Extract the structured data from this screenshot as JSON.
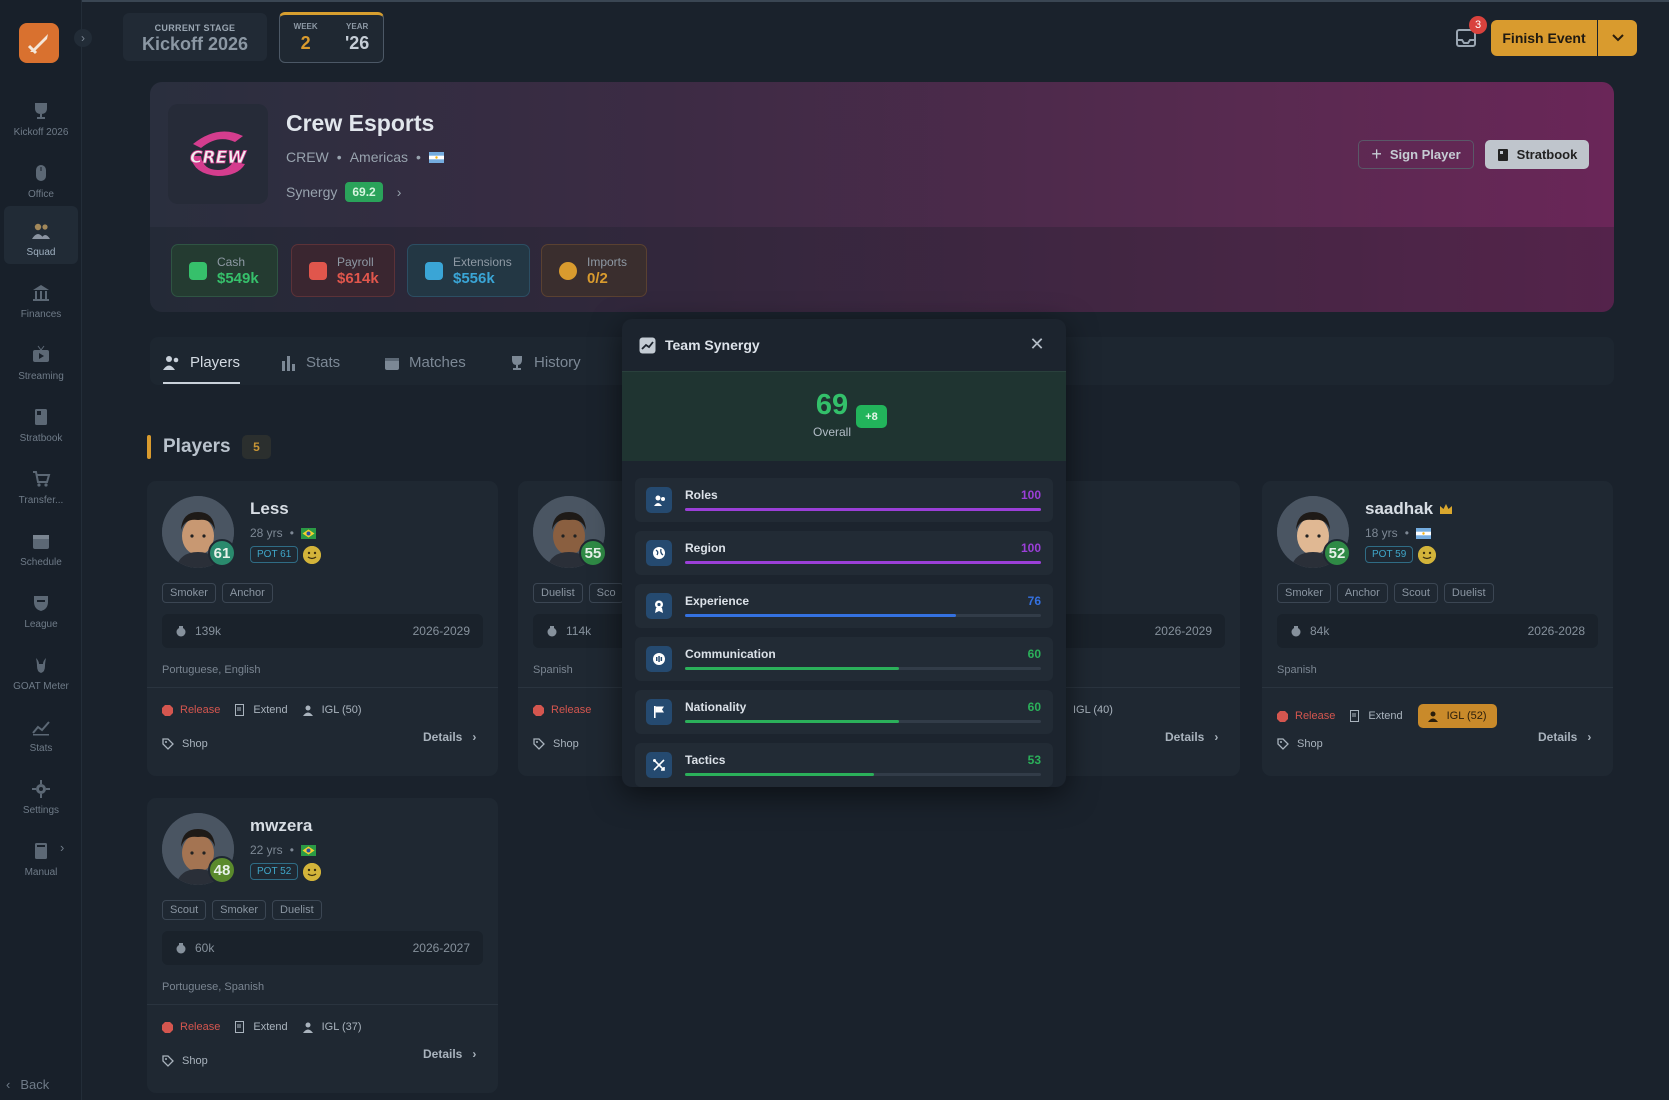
{
  "sidebar": {
    "items": [
      {
        "label": "Kickoff 2026",
        "icon": "trophy-icon"
      },
      {
        "label": "Office",
        "icon": "mouse-icon"
      },
      {
        "label": "Squad",
        "icon": "users-icon"
      },
      {
        "label": "Finances",
        "icon": "bank-icon"
      },
      {
        "label": "Streaming",
        "icon": "tv-icon"
      },
      {
        "label": "Stratbook",
        "icon": "book-icon"
      },
      {
        "label": "Transfer...",
        "icon": "cart-icon"
      },
      {
        "label": "Schedule",
        "icon": "calendar-icon"
      },
      {
        "label": "League",
        "icon": "shield-icon"
      },
      {
        "label": "GOAT Meter",
        "icon": "goat-icon"
      },
      {
        "label": "Stats",
        "icon": "chart-icon"
      },
      {
        "label": "Settings",
        "icon": "gear-icon"
      },
      {
        "label": "Manual",
        "icon": "manual-icon"
      }
    ],
    "active": "Squad",
    "back_label": "Back"
  },
  "topbar": {
    "stage_caption": "CURRENT STAGE",
    "stage_value": "Kickoff 2026",
    "week_caption": "WEEK",
    "week_value": "2",
    "year_caption": "YEAR",
    "year_value": "'26",
    "inbox_count": "3",
    "finish_label": "Finish Event"
  },
  "team": {
    "name": "Crew Esports",
    "tag": "CREW",
    "region": "Americas",
    "logo_text": "CREW",
    "synergy_label": "Synergy",
    "synergy_value": "69.2",
    "sign_label": "Sign Player",
    "stratbook_label": "Stratbook",
    "finances": [
      {
        "label": "Cash",
        "value": "$549k",
        "color": "#36c06b"
      },
      {
        "label": "Payroll",
        "value": "$614k",
        "color": "#e0564c"
      },
      {
        "label": "Extensions",
        "value": "$556k",
        "color": "#3aa5d6"
      },
      {
        "label": "Imports",
        "value": "0/2",
        "color": "#d99b2e"
      }
    ]
  },
  "tabs": [
    "Players",
    "Stats",
    "Matches",
    "History"
  ],
  "players_section": {
    "title": "Players",
    "count": "5"
  },
  "players": [
    {
      "name": "Less",
      "age": "28 yrs",
      "ovr": "61",
      "pot": "POT 61",
      "roles": [
        "Smoker",
        "Anchor"
      ],
      "salary": "139k",
      "years": "2026-2029",
      "langs": "Portuguese, English",
      "release": "Release",
      "extend": "Extend",
      "igl": "IGL (50)",
      "shop": "Shop",
      "details": "Details"
    },
    {
      "name": "",
      "age": "",
      "ovr": "55",
      "pot": "",
      "roles": [
        "Duelist",
        "Sco"
      ],
      "salary": "114k",
      "years": "",
      "langs": "Spanish",
      "release": "Release",
      "extend": "",
      "igl": "",
      "shop": "Shop",
      "details": ""
    },
    {
      "name": "",
      "age": "",
      "ovr": "",
      "pot": "",
      "roles": [],
      "salary": "",
      "years": "2026-2029",
      "langs": "",
      "release": "",
      "extend": "",
      "igl": "IGL (40)",
      "shop": "",
      "details": "Details"
    },
    {
      "name": "saadhak",
      "age": "18 yrs",
      "ovr": "52",
      "pot": "POT 59",
      "roles": [
        "Smoker",
        "Anchor",
        "Scout",
        "Duelist"
      ],
      "salary": "84k",
      "years": "2026-2028",
      "langs": "Spanish",
      "release": "Release",
      "extend": "Extend",
      "igl": "IGL (52)",
      "shop": "Shop",
      "details": "Details"
    },
    {
      "name": "mwzera",
      "age": "22 yrs",
      "ovr": "48",
      "pot": "POT 52",
      "roles": [
        "Scout",
        "Smoker",
        "Duelist"
      ],
      "salary": "60k",
      "years": "2026-2027",
      "langs": "Portuguese, Spanish",
      "release": "Release",
      "extend": "Extend",
      "igl": "IGL (37)",
      "shop": "Shop",
      "details": "Details"
    }
  ],
  "modal": {
    "title": "Team Synergy",
    "score": "69",
    "overall_label": "Overall",
    "delta": "+8",
    "rows": [
      {
        "label": "Roles",
        "value": "100",
        "fraction": 1.0,
        "color": "#9b3fd8",
        "icon": "roles-icon"
      },
      {
        "label": "Region",
        "value": "100",
        "fraction": 1.0,
        "color": "#9b3fd8",
        "icon": "globe-icon"
      },
      {
        "label": "Experience",
        "value": "76",
        "fraction": 0.76,
        "color": "#3471e0",
        "icon": "badge-icon"
      },
      {
        "label": "Communication",
        "value": "60",
        "fraction": 0.6,
        "color": "#2bb05a",
        "icon": "chat-icon"
      },
      {
        "label": "Nationality",
        "value": "60",
        "fraction": 0.6,
        "color": "#2bb05a",
        "icon": "flag-icon"
      },
      {
        "label": "Tactics",
        "value": "53",
        "fraction": 0.53,
        "color": "#2bb05a",
        "icon": "tactics-icon"
      }
    ]
  }
}
